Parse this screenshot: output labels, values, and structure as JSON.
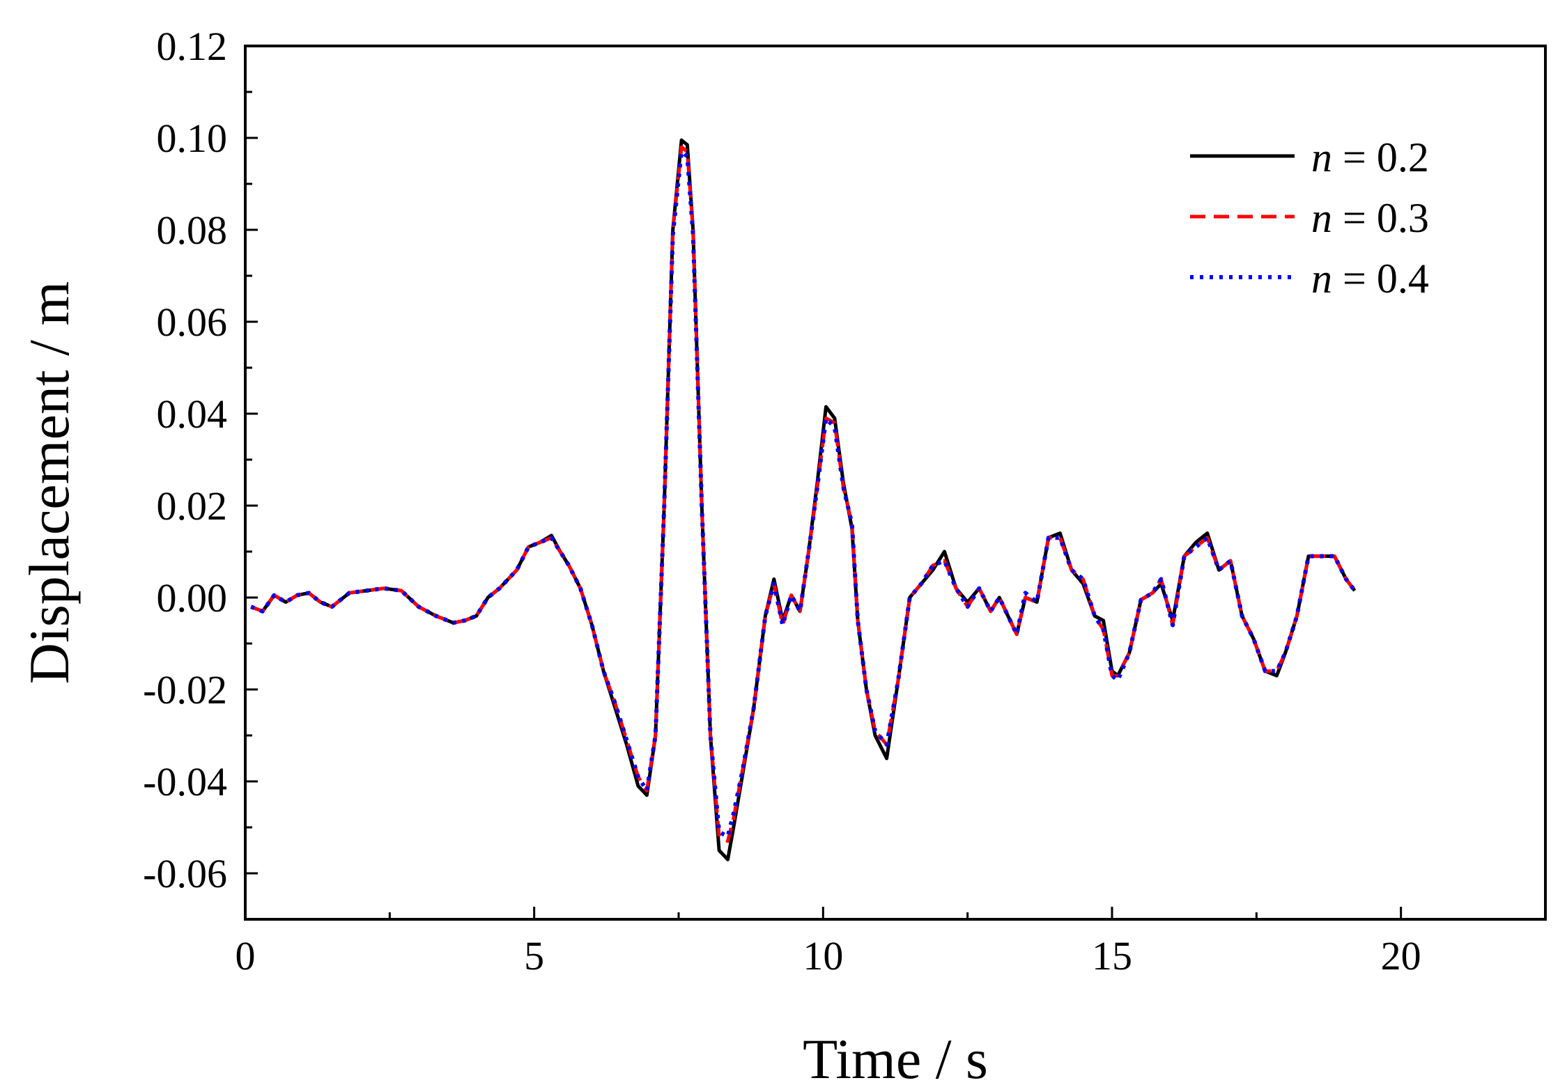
{
  "chart_data": {
    "type": "line",
    "xlabel": "Time / s",
    "ylabel": "Displacement / m",
    "xlim": [
      0,
      22.5
    ],
    "ylim": [
      -0.07,
      0.12
    ],
    "xticks": [
      0,
      5,
      10,
      15,
      20
    ],
    "xtick_labels": [
      "0",
      "5",
      "10",
      "15",
      "20"
    ],
    "yticks": [
      -0.06,
      -0.04,
      -0.02,
      0.0,
      0.02,
      0.04,
      0.06,
      0.08,
      0.1,
      0.12
    ],
    "ytick_labels": [
      "-0.06",
      "-0.04",
      "-0.02",
      "0.00",
      "0.02",
      "0.04",
      "0.06",
      "0.08",
      "0.10",
      "0.12"
    ],
    "grid": false,
    "legend_position": "top-right",
    "x": [
      0.1,
      0.3,
      0.5,
      0.7,
      0.9,
      1.1,
      1.3,
      1.5,
      1.8,
      2.1,
      2.4,
      2.7,
      3.0,
      3.3,
      3.6,
      3.8,
      4.0,
      4.2,
      4.4,
      4.7,
      4.9,
      5.1,
      5.3,
      5.45,
      5.6,
      5.8,
      6.0,
      6.2,
      6.4,
      6.6,
      6.8,
      6.95,
      7.1,
      7.25,
      7.4,
      7.55,
      7.65,
      7.75,
      7.9,
      8.05,
      8.2,
      8.35,
      8.45,
      8.6,
      8.8,
      9.0,
      9.15,
      9.3,
      9.45,
      9.6,
      9.75,
      9.9,
      10.05,
      10.2,
      10.35,
      10.5,
      10.6,
      10.75,
      10.9,
      11.1,
      11.3,
      11.5,
      11.7,
      11.9,
      12.1,
      12.3,
      12.5,
      12.7,
      12.9,
      13.05,
      13.2,
      13.35,
      13.5,
      13.7,
      13.9,
      14.1,
      14.3,
      14.5,
      14.7,
      14.85,
      15.0,
      15.1,
      15.3,
      15.5,
      15.7,
      15.85,
      16.05,
      16.25,
      16.45,
      16.65,
      16.85,
      17.05,
      17.25,
      17.45,
      17.65,
      17.85,
      18.0,
      18.2,
      18.4,
      18.6,
      18.85,
      19.05,
      19.2
    ],
    "series": [
      {
        "name": "n = 0.2",
        "label_var": "n",
        "label_rest": " = 0.2",
        "color": "#000000",
        "style": "solid",
        "values": [
          -0.002,
          -0.003,
          0.0005,
          -0.001,
          0.0005,
          0.001,
          -0.001,
          -0.002,
          0.001,
          0.0015,
          0.002,
          0.0015,
          -0.002,
          -0.004,
          -0.0055,
          -0.005,
          -0.004,
          0.0,
          0.002,
          0.006,
          0.011,
          0.012,
          0.0135,
          0.01,
          0.007,
          0.002,
          -0.006,
          -0.016,
          -0.024,
          -0.032,
          -0.041,
          -0.043,
          -0.03,
          0.02,
          0.08,
          0.0995,
          0.0985,
          0.08,
          0.02,
          -0.03,
          -0.055,
          -0.057,
          -0.05,
          -0.039,
          -0.024,
          -0.004,
          0.004,
          -0.005,
          0.0005,
          -0.003,
          0.01,
          0.025,
          0.0415,
          0.039,
          0.025,
          0.015,
          -0.005,
          -0.02,
          -0.03,
          -0.035,
          -0.018,
          0.0,
          0.003,
          0.006,
          0.01,
          0.002,
          -0.001,
          0.002,
          -0.003,
          0.0,
          -0.004,
          -0.008,
          0.0,
          -0.001,
          0.013,
          0.014,
          0.006,
          0.003,
          -0.004,
          -0.005,
          -0.016,
          -0.017,
          -0.012,
          -0.0005,
          0.001,
          0.003,
          -0.005,
          0.009,
          0.012,
          0.014,
          0.006,
          0.008,
          -0.004,
          -0.009,
          -0.016,
          -0.017,
          -0.012,
          -0.004,
          0.009,
          0.009,
          0.009,
          0.004,
          0.0015
        ]
      },
      {
        "name": "n = 0.3",
        "label_var": "n",
        "label_rest": " = 0.3",
        "color": "#ff0000",
        "style": "dashed",
        "values": [
          -0.002,
          -0.003,
          0.0005,
          -0.001,
          0.0005,
          0.001,
          -0.001,
          -0.002,
          0.001,
          0.0015,
          0.002,
          0.0015,
          -0.002,
          -0.004,
          -0.0055,
          -0.005,
          -0.004,
          0.0,
          0.002,
          0.006,
          0.011,
          0.012,
          0.013,
          0.01,
          0.007,
          0.002,
          -0.006,
          -0.016,
          -0.023,
          -0.031,
          -0.039,
          -0.042,
          -0.03,
          0.02,
          0.08,
          0.098,
          0.097,
          0.08,
          0.02,
          -0.03,
          -0.052,
          -0.053,
          -0.048,
          -0.038,
          -0.024,
          -0.004,
          0.003,
          -0.006,
          0.0005,
          -0.003,
          0.01,
          0.024,
          0.039,
          0.038,
          0.024,
          0.016,
          -0.005,
          -0.02,
          -0.029,
          -0.032,
          -0.018,
          0.0,
          0.003,
          0.007,
          0.008,
          0.002,
          -0.002,
          0.002,
          -0.003,
          0.0,
          -0.004,
          -0.008,
          0.0,
          -0.001,
          0.013,
          0.013,
          0.006,
          0.004,
          -0.004,
          -0.007,
          -0.017,
          -0.017,
          -0.012,
          -0.0005,
          0.001,
          0.004,
          -0.006,
          0.009,
          0.011,
          0.013,
          0.006,
          0.008,
          -0.004,
          -0.009,
          -0.016,
          -0.016,
          -0.012,
          -0.004,
          0.009,
          0.009,
          0.009,
          0.004,
          0.0015
        ]
      },
      {
        "name": "n = 0.4",
        "label_var": "n",
        "label_rest": " = 0.4",
        "color": "#0000ff",
        "style": "dotted",
        "values": [
          -0.002,
          -0.003,
          0.0005,
          -0.001,
          0.0005,
          0.001,
          -0.001,
          -0.002,
          0.001,
          0.0015,
          0.002,
          0.0015,
          -0.002,
          -0.004,
          -0.0055,
          -0.005,
          -0.004,
          0.0,
          0.002,
          0.006,
          0.011,
          0.012,
          0.013,
          0.01,
          0.007,
          0.002,
          -0.006,
          -0.016,
          -0.023,
          -0.031,
          -0.039,
          -0.042,
          -0.03,
          0.02,
          0.079,
          0.097,
          0.096,
          0.079,
          0.02,
          -0.03,
          -0.051,
          -0.052,
          -0.047,
          -0.038,
          -0.024,
          -0.004,
          0.003,
          -0.006,
          0.0005,
          -0.003,
          0.01,
          0.024,
          0.039,
          0.037,
          0.024,
          0.016,
          -0.005,
          -0.02,
          -0.029,
          -0.032,
          -0.018,
          0.0,
          0.003,
          0.007,
          0.008,
          0.002,
          -0.002,
          0.002,
          -0.003,
          0.0,
          -0.004,
          -0.008,
          0.001,
          -0.001,
          0.013,
          0.013,
          0.006,
          0.004,
          -0.004,
          -0.007,
          -0.017,
          -0.018,
          -0.012,
          -0.0005,
          0.001,
          0.004,
          -0.006,
          0.009,
          0.011,
          0.013,
          0.006,
          0.008,
          -0.004,
          -0.009,
          -0.016,
          -0.016,
          -0.012,
          -0.004,
          0.009,
          0.009,
          0.009,
          0.004,
          0.0015
        ]
      }
    ]
  }
}
